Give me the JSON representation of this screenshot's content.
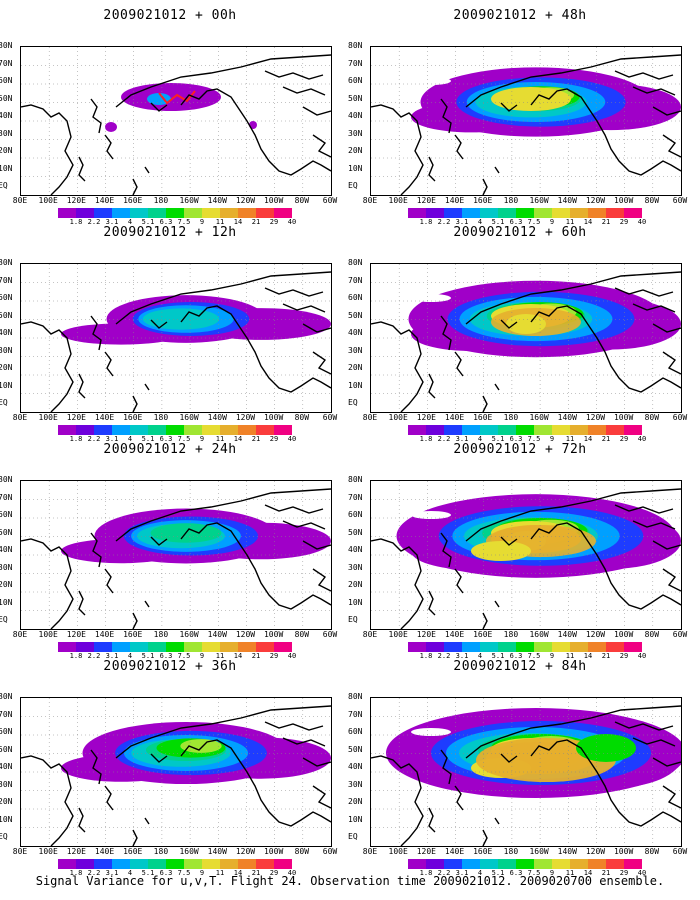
{
  "panels": [
    {
      "title": "2009021012 + 00h",
      "level": 0
    },
    {
      "title": "2009021012 + 48h",
      "level": 4
    },
    {
      "title": "2009021012 + 12h",
      "level": 1
    },
    {
      "title": "2009021012 + 60h",
      "level": 5
    },
    {
      "title": "2009021012 + 24h",
      "level": 2
    },
    {
      "title": "2009021012 + 72h",
      "level": 6
    },
    {
      "title": "2009021012 + 36h",
      "level": 3
    },
    {
      "title": "2009021012 + 84h",
      "level": 7
    }
  ],
  "lat_labels": [
    "80N",
    "70N",
    "60N",
    "50N",
    "40N",
    "30N",
    "20N",
    "10N",
    "EQ"
  ],
  "lon_labels": [
    "80E",
    "100E",
    "120E",
    "140E",
    "160E",
    "180",
    "160W",
    "140W",
    "120W",
    "100W",
    "80W",
    "60W"
  ],
  "colorbar": {
    "colors": [
      "#a000c8",
      "#6e00dc",
      "#1e3cff",
      "#00a0ff",
      "#00c8c8",
      "#00d28c",
      "#00dc00",
      "#a0e632",
      "#e6dc32",
      "#e6af2d",
      "#f08228",
      "#fa3c3c",
      "#f00082"
    ],
    "labels": [
      "1.8",
      "2.2",
      "3.1",
      "4",
      "5.1",
      "6.3",
      "7.5",
      "9",
      "11",
      "14",
      "21",
      "29",
      "40"
    ]
  },
  "caption": "Signal Variance for u,v,T. Flight 24. Observation time 2009021012. 2009020700 ensemble."
}
